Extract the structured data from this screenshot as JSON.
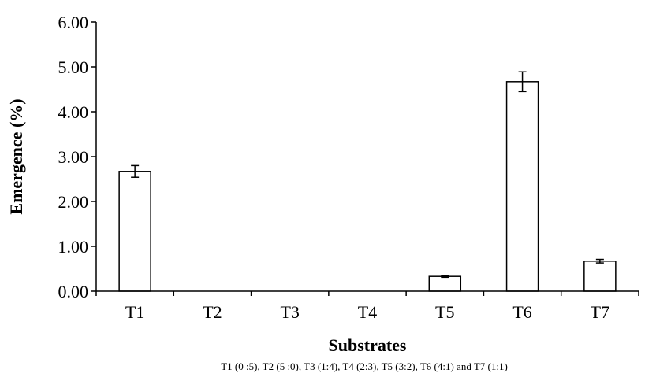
{
  "chart_data": {
    "type": "bar",
    "categories": [
      "T1",
      "T2",
      "T3",
      "T4",
      "T5",
      "T6",
      "T7"
    ],
    "values": [
      2.67,
      0,
      0,
      0,
      0.33,
      4.67,
      0.67
    ],
    "errors": [
      0.13,
      0,
      0,
      0,
      0.02,
      0.22,
      0.04
    ],
    "xlabel": "Substrates",
    "ylabel": "Emergence (%)",
    "ylim": [
      0,
      6
    ],
    "yticks": [
      "0.00",
      "1.00",
      "2.00",
      "3.00",
      "4.00",
      "5.00",
      "6.00"
    ],
    "footnote": "T1 (0 :5),  T2 (5 :0), T3 (1:4), T4 (2:3), T5 (3:2), T6 (4:1) and T7 (1:1)",
    "grid": false,
    "bar_color": "#ffffff",
    "edge_color": "#000000"
  }
}
